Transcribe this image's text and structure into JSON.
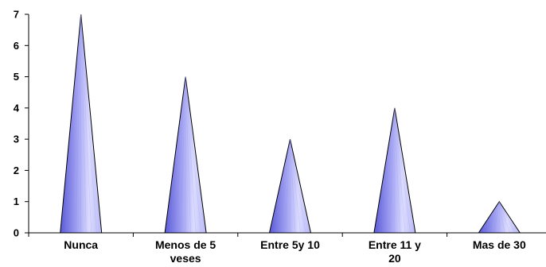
{
  "chart_data": {
    "type": "bar",
    "mark": "cone",
    "categories": [
      "Nunca",
      "Menos de 5 veses",
      "Entre 5y 10",
      "Entre 11 y 20",
      "Mas de 30"
    ],
    "category_lines": [
      [
        "Nunca"
      ],
      [
        "Menos de 5",
        "veses"
      ],
      [
        "Entre 5y 10"
      ],
      [
        "Entre 11 y",
        "20"
      ],
      [
        "Mas de 30"
      ]
    ],
    "values": [
      7,
      5,
      3,
      4,
      1
    ],
    "ylim": [
      0,
      7
    ],
    "yticks": [
      "0",
      "1",
      "2",
      "3",
      "4",
      "5",
      "6",
      "7"
    ],
    "grid": false,
    "legend": "none",
    "colors": {
      "fill_dark": "#6e6ee6",
      "fill_light": "#d6d6ff",
      "stroke": "#000000"
    }
  }
}
